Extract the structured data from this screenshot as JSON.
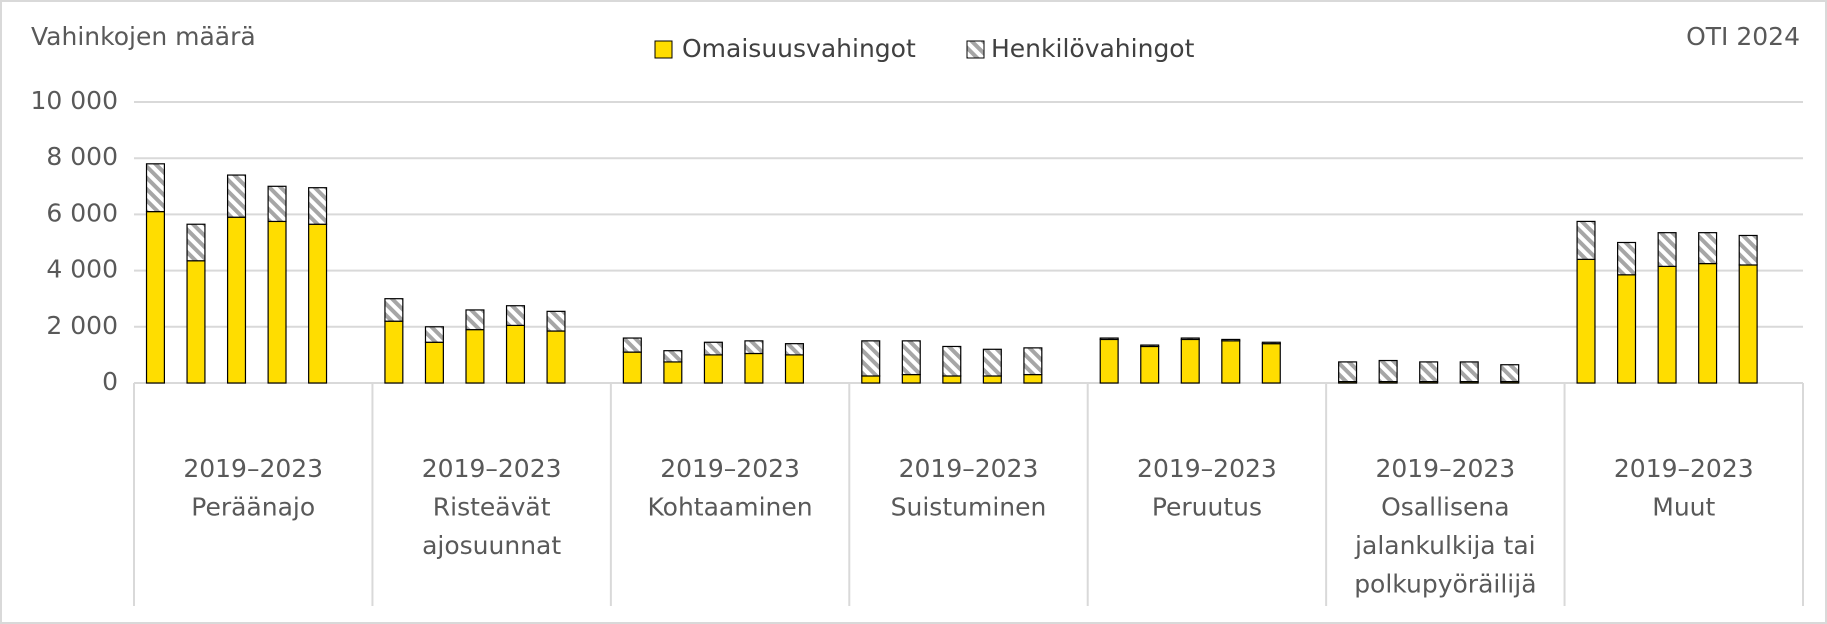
{
  "chart_data": {
    "type": "stacked_bar",
    "y_axis_title": "Vahinkojen määrä",
    "annotation": "OTI 2024",
    "categories": [
      [
        "2019–2023",
        "Peräänajo"
      ],
      [
        "2019–2023",
        "Risteävät",
        "ajosuunnat"
      ],
      [
        "2019–2023",
        "Kohtaaminen"
      ],
      [
        "2019–2023",
        "Suistuminen"
      ],
      [
        "2019–2023",
        "Peruutus"
      ],
      [
        "2019–2023",
        "Osallisena",
        "jalankulkija tai",
        "polkupyöräilijä"
      ],
      [
        "2019–2023",
        "Muut"
      ]
    ],
    "series": [
      {
        "name": "Omaisuusvahingot",
        "color": "#ffdd00",
        "values": [
          [
            6100,
            4350,
            5900,
            5750,
            5650
          ],
          [
            2200,
            1450,
            1900,
            2050,
            1850
          ],
          [
            1100,
            750,
            1000,
            1050,
            1000
          ],
          [
            250,
            300,
            250,
            250,
            300
          ],
          [
            1550,
            1300,
            1550,
            1500,
            1400
          ],
          [
            50,
            50,
            50,
            50,
            50
          ],
          [
            4400,
            3850,
            4150,
            4250,
            4200
          ]
        ]
      },
      {
        "name": "Henkilövahingot",
        "color": "#a6a6a6",
        "values": [
          [
            1700,
            1300,
            1500,
            1250,
            1300
          ],
          [
            800,
            550,
            700,
            700,
            700
          ],
          [
            500,
            400,
            450,
            450,
            400
          ],
          [
            1250,
            1200,
            1050,
            950,
            950
          ],
          [
            50,
            50,
            50,
            50,
            50
          ],
          [
            700,
            750,
            700,
            700,
            600
          ],
          [
            1350,
            1150,
            1200,
            1100,
            1050
          ]
        ]
      }
    ],
    "ylim": [
      0,
      10000
    ],
    "yticks": [
      0,
      {
        "value": 2000,
        "label": "2 000"
      },
      {
        "value": 4000,
        "label": "4 000"
      },
      {
        "value": 6000,
        "label": "6 000"
      },
      {
        "value": 8000,
        "label": "8 000"
      },
      {
        "value": 10000,
        "label": "10 000"
      }
    ],
    "grid": true
  }
}
